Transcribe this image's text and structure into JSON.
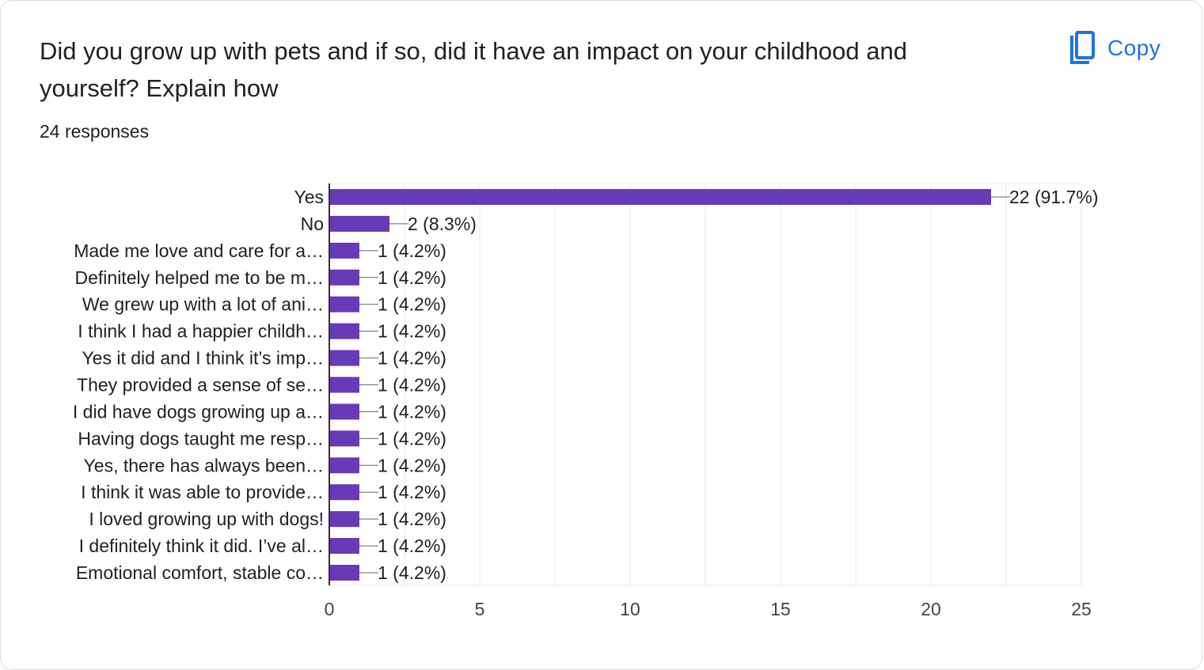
{
  "question": {
    "title": "Did you grow up with pets and if so, did it have an impact on your childhood and yourself? Explain how",
    "responses": "24 responses"
  },
  "copy_button": {
    "label": "Copy",
    "icon": "copy-icon"
  },
  "colors": {
    "bar": "#673ab7",
    "grid": "#e8e8e8",
    "axis": "#333333",
    "copy_blue": "#1a73e8"
  },
  "chart_data": {
    "type": "bar",
    "orientation": "horizontal",
    "categories": [
      "Yes",
      "No",
      "Made me love and care for a…",
      "Definitely helped me to be m…",
      "We grew up with a lot of ani…",
      "I think I had a happier childh…",
      "Yes it did and I think it’s imp…",
      "They provided a sense of se…",
      "I did have dogs growing up a…",
      "Having dogs taught me resp…",
      "Yes, there has always been…",
      "I think it was able to provide…",
      "I loved growing up with dogs!",
      "I definitely think it did. I’ve al…",
      "Emotional comfort, stable co…"
    ],
    "values": [
      22,
      2,
      1,
      1,
      1,
      1,
      1,
      1,
      1,
      1,
      1,
      1,
      1,
      1,
      1
    ],
    "data_labels": [
      "22 (91.7%)",
      "2 (8.3%)",
      "1 (4.2%)",
      "1 (4.2%)",
      "1 (4.2%)",
      "1 (4.2%)",
      "1 (4.2%)",
      "1 (4.2%)",
      "1 (4.2%)",
      "1 (4.2%)",
      "1 (4.2%)",
      "1 (4.2%)",
      "1 (4.2%)",
      "1 (4.2%)",
      "1 (4.2%)"
    ],
    "xlim": [
      0,
      25
    ],
    "xticks": [
      0,
      5,
      10,
      15,
      20,
      25
    ],
    "grid": true,
    "title": "",
    "xlabel": "",
    "ylabel": ""
  }
}
